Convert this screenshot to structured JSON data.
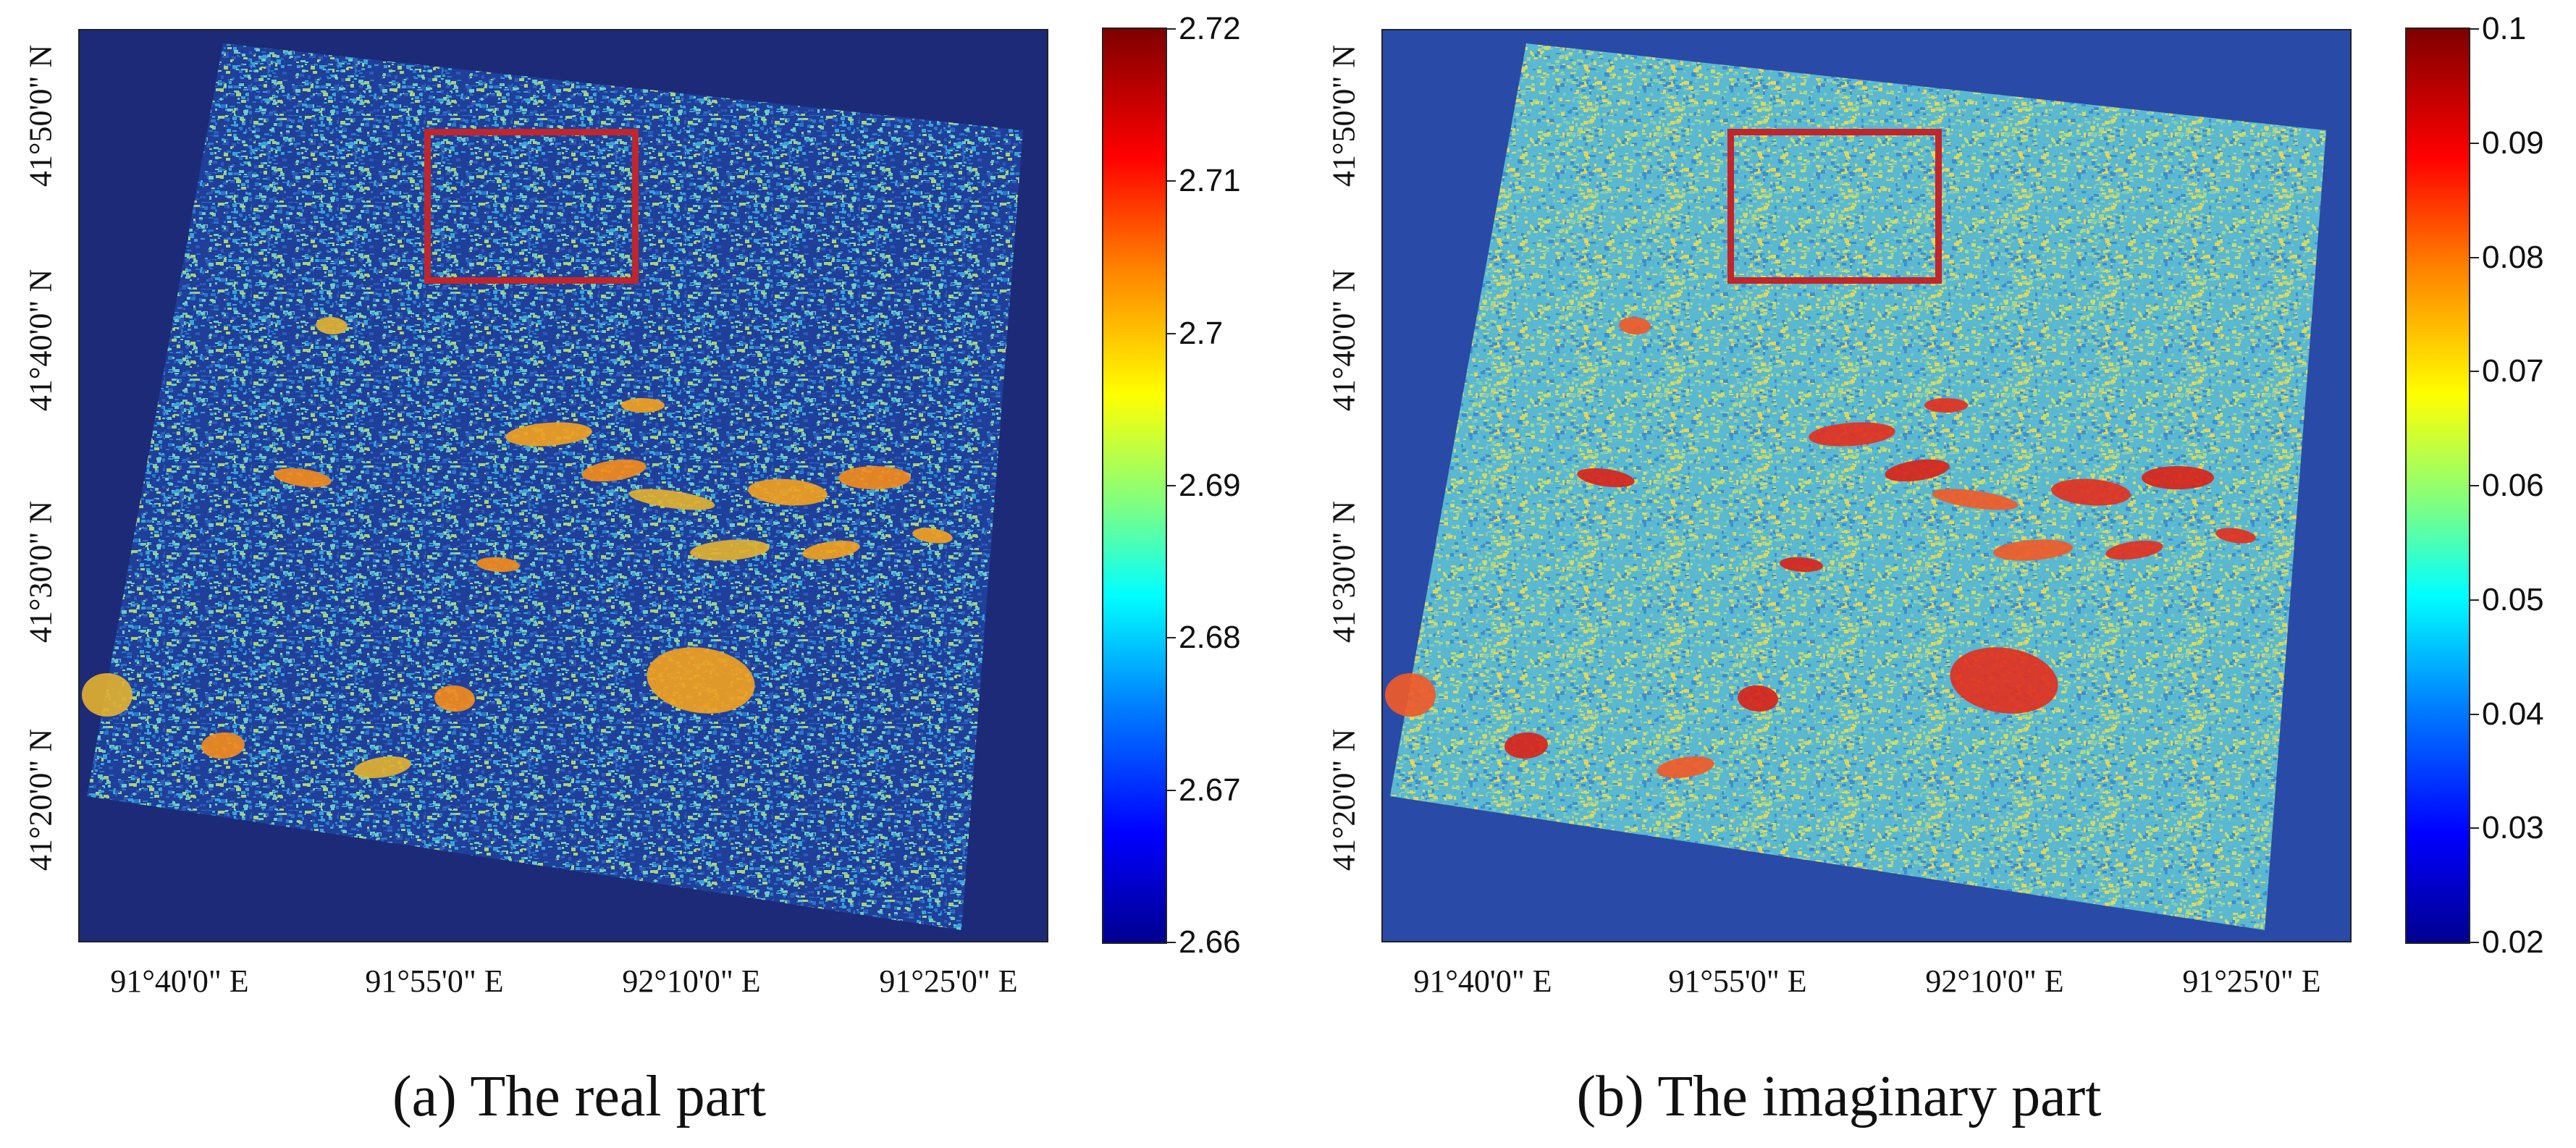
{
  "panels": [
    {
      "id": "a",
      "caption": "(a) The real part",
      "latitude_labels": [
        "41°50'0\" N",
        "41°40'0\" N",
        "41°30'0\" N",
        "41°20'0\" N"
      ],
      "longitude_labels": [
        "91°40'0\" E",
        "91°55'0\" E",
        "92°10'0\" E",
        "91°25'0\" E"
      ],
      "colorbar": {
        "ticks": [
          "2.72",
          "2.71",
          "2.7",
          "2.69",
          "2.68",
          "2.67",
          "2.66"
        ],
        "min": 2.66,
        "max": 2.72
      },
      "palette": {
        "background": "#1c2a78",
        "base": [
          "#1f3f9a",
          "#2d5cb8",
          "#2a78c8",
          "#3aa3d6",
          "#6fc9c0",
          "#a7d27a"
        ],
        "feature": [
          "#f0a020",
          "#f28a1c",
          "#e0b030"
        ],
        "roi": "#c0262b"
      }
    },
    {
      "id": "b",
      "caption": "(b) The imaginary part",
      "latitude_labels": [
        "41°50'0\" N",
        "41°40'0\" N",
        "41°30'0\" N",
        "41°20'0\" N"
      ],
      "longitude_labels": [
        "91°40'0\" E",
        "91°55'0\" E",
        "92°10'0\" E",
        "91°25'0\" E"
      ],
      "colorbar": {
        "ticks": [
          "0.1",
          "0.09",
          "0.08",
          "0.07",
          "0.06",
          "0.05",
          "0.04",
          "0.03",
          "0.02"
        ],
        "min": 0.02,
        "max": 0.1
      },
      "palette": {
        "background": "#2a4aa8",
        "base": [
          "#5ab8d0",
          "#7fcab8",
          "#a6d58c",
          "#c9dc6a",
          "#3d8fd0",
          "#e2d65a"
        ],
        "feature": [
          "#e23020",
          "#d8241a",
          "#ef5a28"
        ],
        "roi": "#c0262b"
      }
    }
  ]
}
